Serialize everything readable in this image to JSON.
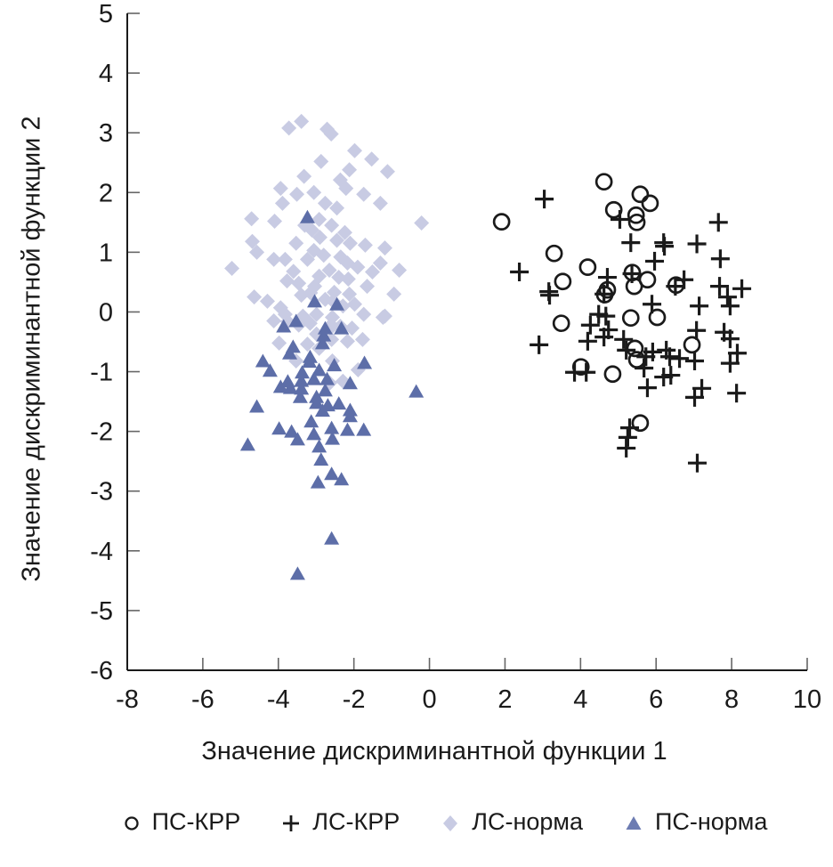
{
  "chart_data": {
    "type": "scatter",
    "title": "",
    "xlabel": "Значение дискриминантной функции 1",
    "ylabel": "Значение дискриминантной функции 2",
    "xlim": [
      -8,
      10
    ],
    "ylim": [
      -6,
      5
    ],
    "xticks": [
      -8,
      -6,
      -4,
      -2,
      0,
      2,
      4,
      6,
      8,
      10
    ],
    "yticks": [
      5,
      4,
      3,
      2,
      1,
      0,
      -1,
      -2,
      -3,
      -4,
      -5,
      -6
    ],
    "grid": false,
    "legend_position": "bottom",
    "colors": {
      "black_marker": "#1a1a1a",
      "diamond_fill": "#c8cbe3",
      "triangle_fill": "#5d6ea8",
      "axis_line": "#1a1a1a",
      "tick_line": "#666666"
    },
    "series": [
      {
        "name": "ПС-КРР",
        "marker": "circle",
        "color": "#1a1a1a",
        "z": 4,
        "points": [
          [
            4.62,
            2.18
          ],
          [
            5.58,
            1.97
          ],
          [
            5.84,
            1.82
          ],
          [
            4.88,
            1.71
          ],
          [
            5.47,
            1.62
          ],
          [
            5.49,
            1.5
          ],
          [
            1.91,
            1.51
          ],
          [
            3.3,
            0.98
          ],
          [
            4.19,
            0.75
          ],
          [
            3.53,
            0.51
          ],
          [
            5.37,
            0.66
          ],
          [
            5.77,
            0.54
          ],
          [
            6.53,
            0.45
          ],
          [
            5.42,
            0.43
          ],
          [
            4.71,
            0.37
          ],
          [
            4.64,
            0.29
          ],
          [
            3.49,
            -0.19
          ],
          [
            5.33,
            -0.1
          ],
          [
            6.03,
            -0.09
          ],
          [
            5.44,
            -0.61
          ],
          [
            5.49,
            -0.8
          ],
          [
            6.95,
            -0.55
          ],
          [
            4.01,
            -0.92
          ],
          [
            4.85,
            -1.04
          ],
          [
            5.58,
            -1.86
          ]
        ]
      },
      {
        "name": "ЛС-КРР",
        "marker": "plus",
        "color": "#1a1a1a",
        "z": 3,
        "points": [
          [
            3.04,
            1.89
          ],
          [
            5.04,
            1.55
          ],
          [
            7.65,
            1.5
          ],
          [
            5.33,
            1.16
          ],
          [
            6.2,
            1.16
          ],
          [
            7.08,
            1.14
          ],
          [
            6.22,
            1.1
          ],
          [
            2.38,
            0.67
          ],
          [
            3.16,
            0.34
          ],
          [
            4.71,
            0.58
          ],
          [
            6.74,
            0.54
          ],
          [
            7.68,
            0.43
          ],
          [
            8.27,
            0.39
          ],
          [
            5.96,
            0.85
          ],
          [
            7.7,
            0.89
          ],
          [
            3.18,
            0.28
          ],
          [
            4.62,
            0.3
          ],
          [
            5.89,
            0.13
          ],
          [
            7.14,
            0.1
          ],
          [
            7.89,
            0.25
          ],
          [
            7.96,
            0.1
          ],
          [
            4.48,
            -0.04
          ],
          [
            4.67,
            -0.07
          ],
          [
            4.26,
            -0.22
          ],
          [
            4.74,
            -0.3
          ],
          [
            4.19,
            -0.49
          ],
          [
            4.62,
            -0.42
          ],
          [
            5.14,
            -0.46
          ],
          [
            7.07,
            -0.31
          ],
          [
            7.8,
            -0.34
          ],
          [
            7.96,
            -0.45
          ],
          [
            2.9,
            -0.55
          ],
          [
            5.21,
            -0.64
          ],
          [
            5.73,
            -0.75
          ],
          [
            5.91,
            -0.67
          ],
          [
            6.27,
            -0.64
          ],
          [
            6.36,
            -0.75
          ],
          [
            6.62,
            -0.78
          ],
          [
            7.02,
            -0.82
          ],
          [
            8.15,
            -0.69
          ],
          [
            7.96,
            -0.86
          ],
          [
            4.15,
            -1.01
          ],
          [
            5.68,
            -0.94
          ],
          [
            5.77,
            -1.27
          ],
          [
            6.2,
            -1.09
          ],
          [
            6.39,
            -1.06
          ],
          [
            7.21,
            -1.28
          ],
          [
            7.02,
            -1.43
          ],
          [
            8.13,
            -1.36
          ],
          [
            5.3,
            -1.94
          ],
          [
            5.25,
            -2.1
          ],
          [
            5.21,
            -2.28
          ],
          [
            7.09,
            -2.53
          ],
          [
            5.36,
            0.64
          ],
          [
            6.51,
            0.43
          ],
          [
            3.84,
            -1.01
          ]
        ]
      },
      {
        "name": "ЛС-норма",
        "marker": "diamond",
        "color": "#c8cbe3",
        "z": 1,
        "points": [
          [
            -3.72,
            3.08
          ],
          [
            -3.39,
            3.19
          ],
          [
            -2.71,
            3.06
          ],
          [
            -2.6,
            2.98
          ],
          [
            -1.98,
            2.7
          ],
          [
            -1.53,
            2.56
          ],
          [
            -2.87,
            2.52
          ],
          [
            -2.12,
            2.38
          ],
          [
            -1.11,
            2.35
          ],
          [
            -3.32,
            2.27
          ],
          [
            -2.36,
            2.21
          ],
          [
            -2.21,
            2.07
          ],
          [
            -3.94,
            2.07
          ],
          [
            -3.06,
            2.0
          ],
          [
            -3.51,
            1.97
          ],
          [
            -1.74,
            1.97
          ],
          [
            -3.89,
            1.82
          ],
          [
            -1.3,
            1.82
          ],
          [
            -2.76,
            1.82
          ],
          [
            -2.45,
            1.74
          ],
          [
            -4.71,
            1.56
          ],
          [
            -4.1,
            1.52
          ],
          [
            -0.21,
            1.49
          ],
          [
            -2.92,
            1.55
          ],
          [
            -2.59,
            1.45
          ],
          [
            -3.11,
            1.37
          ],
          [
            -2.24,
            1.33
          ],
          [
            -4.69,
            1.18
          ],
          [
            -3.53,
            1.15
          ],
          [
            -2.1,
            1.15
          ],
          [
            -1.7,
            1.12
          ],
          [
            -4.57,
            1.0
          ],
          [
            -1.18,
            1.07
          ],
          [
            -3.06,
            1.03
          ],
          [
            -2.8,
            0.95
          ],
          [
            -4.12,
            0.88
          ],
          [
            -3.82,
            0.88
          ],
          [
            -3.23,
            0.88
          ],
          [
            -1.3,
            0.82
          ],
          [
            -5.23,
            0.73
          ],
          [
            -2.17,
            0.82
          ],
          [
            -0.8,
            0.7
          ],
          [
            -1.51,
            0.67
          ],
          [
            -2.92,
            0.6
          ],
          [
            -2.4,
            0.58
          ],
          [
            -3.77,
            0.52
          ],
          [
            -3.46,
            0.48
          ],
          [
            -0.94,
            0.3
          ],
          [
            -4.64,
            0.25
          ],
          [
            -3.04,
            0.43
          ],
          [
            -2.52,
            0.33
          ],
          [
            -2.12,
            0.3
          ],
          [
            -1.65,
            0.43
          ],
          [
            -4.29,
            0.18
          ],
          [
            -1.23,
            -0.09
          ],
          [
            -3.94,
            0.07
          ],
          [
            -3.75,
            -0.16
          ],
          [
            -2.64,
            -0.24
          ],
          [
            -2.36,
            -0.24
          ],
          [
            -3.39,
            0.28
          ],
          [
            -2.76,
            0.21
          ],
          [
            -2.29,
            0.1
          ],
          [
            -1.98,
            0.13
          ],
          [
            -1.74,
            -0.04
          ],
          [
            -1.18,
            -0.07
          ],
          [
            -2.57,
            -0.09
          ],
          [
            -2.99,
            -0.04
          ],
          [
            -3.35,
            -0.07
          ],
          [
            -3.82,
            -0.04
          ],
          [
            -4.12,
            -0.15
          ],
          [
            -3.46,
            -0.22
          ],
          [
            -3.16,
            -0.19
          ],
          [
            -2.57,
            -0.24
          ],
          [
            -2.05,
            -0.27
          ],
          [
            -2.99,
            -0.37
          ],
          [
            -2.59,
            -0.46
          ],
          [
            -2.17,
            -0.49
          ],
          [
            -1.77,
            -0.46
          ],
          [
            -3.98,
            -0.52
          ],
          [
            -3.23,
            -0.54
          ],
          [
            -2.92,
            -0.61
          ],
          [
            -3.53,
            -0.82
          ],
          [
            -2.57,
            -0.82
          ],
          [
            -1.89,
            -0.97
          ],
          [
            -2.29,
            -1.16
          ],
          [
            -2.64,
            -1.19
          ],
          [
            -2.9,
            1.25
          ],
          [
            -2.45,
            1.2
          ],
          [
            -3.3,
            1.45
          ],
          [
            -2.15,
            0.55
          ],
          [
            -1.9,
            0.75
          ],
          [
            -2.65,
            0.7
          ],
          [
            -3.6,
            0.68
          ],
          [
            -2.35,
            0.92
          ],
          [
            -3.15,
            0.32
          ],
          [
            -2.55,
            0.18
          ]
        ]
      },
      {
        "name": "ПС-норма",
        "marker": "triangle",
        "color": "#5d6ea8",
        "z": 2,
        "points": [
          [
            -3.23,
            1.59
          ],
          [
            -3.04,
            0.18
          ],
          [
            -2.45,
            0.13
          ],
          [
            -3.53,
            -0.15
          ],
          [
            -3.86,
            -0.24
          ],
          [
            -2.76,
            -0.27
          ],
          [
            -2.33,
            -0.27
          ],
          [
            -2.8,
            -0.39
          ],
          [
            -2.83,
            -0.52
          ],
          [
            -3.61,
            -0.58
          ],
          [
            -3.7,
            -0.69
          ],
          [
            -3.16,
            -0.75
          ],
          [
            -4.41,
            -0.82
          ],
          [
            -3.18,
            -0.83
          ],
          [
            -1.72,
            -0.85
          ],
          [
            -4.22,
            -0.98
          ],
          [
            -2.92,
            -0.97
          ],
          [
            -3.37,
            -1.01
          ],
          [
            -2.52,
            -0.89
          ],
          [
            -3.06,
            -1.12
          ],
          [
            -2.71,
            -1.12
          ],
          [
            -3.39,
            -1.15
          ],
          [
            -3.75,
            -1.16
          ],
          [
            -3.94,
            -1.25
          ],
          [
            -3.68,
            -1.27
          ],
          [
            -3.39,
            -1.28
          ],
          [
            -2.1,
            -1.19
          ],
          [
            -0.35,
            -1.33
          ],
          [
            -2.76,
            -1.31
          ],
          [
            -3.42,
            -1.42
          ],
          [
            -2.99,
            -1.42
          ],
          [
            -2.99,
            -1.52
          ],
          [
            -2.69,
            -1.56
          ],
          [
            -2.4,
            -1.53
          ],
          [
            -4.57,
            -1.58
          ],
          [
            -2.83,
            -1.65
          ],
          [
            -2.1,
            -1.64
          ],
          [
            -2.1,
            -1.74
          ],
          [
            -3.13,
            -1.83
          ],
          [
            -3.98,
            -1.95
          ],
          [
            -3.65,
            -2.0
          ],
          [
            -2.59,
            -1.94
          ],
          [
            -2.17,
            -1.97
          ],
          [
            -3.06,
            -2.04
          ],
          [
            -1.74,
            -1.97
          ],
          [
            -3.49,
            -2.13
          ],
          [
            -2.57,
            -2.12
          ],
          [
            -4.81,
            -2.22
          ],
          [
            -2.92,
            -2.25
          ],
          [
            -2.87,
            -2.47
          ],
          [
            -2.59,
            -2.71
          ],
          [
            -2.33,
            -2.8
          ],
          [
            -2.95,
            -2.85
          ],
          [
            -2.59,
            -3.79
          ],
          [
            -3.49,
            -4.38
          ]
        ]
      }
    ]
  }
}
